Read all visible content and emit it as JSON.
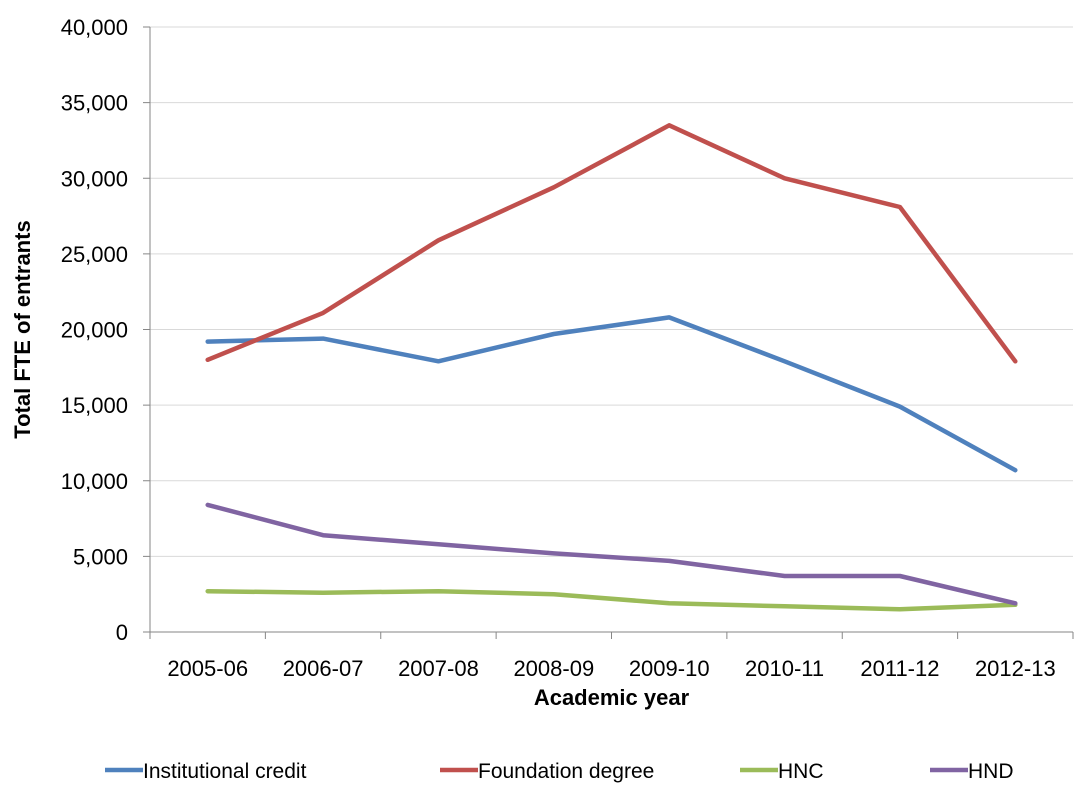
{
  "chart_data": {
    "type": "line",
    "title": "",
    "xlabel": "Academic year",
    "ylabel": "Total FTE of entrants",
    "categories": [
      "2005-06",
      "2006-07",
      "2007-08",
      "2008-09",
      "2009-10",
      "2010-11",
      "2011-12",
      "2012-13"
    ],
    "ylim": [
      0,
      40000
    ],
    "yticks": [
      0,
      5000,
      10000,
      15000,
      20000,
      25000,
      30000,
      35000,
      40000
    ],
    "ytick_labels": [
      "0",
      "5,000",
      "10,000",
      "15,000",
      "20,000",
      "25,000",
      "30,000",
      "35,000",
      "40,000"
    ],
    "grid": "horizontal",
    "legend_position": "bottom",
    "series": [
      {
        "name": "Institutional credit",
        "color": "#4f81bd",
        "values": [
          19200,
          19400,
          17900,
          19700,
          20800,
          17900,
          14900,
          10700
        ]
      },
      {
        "name": "Foundation degree",
        "color": "#c0504d",
        "values": [
          18000,
          21100,
          25900,
          29400,
          33500,
          30000,
          28100,
          17900
        ]
      },
      {
        "name": "HNC",
        "color": "#9bbb59",
        "values": [
          2700,
          2600,
          2700,
          2500,
          1900,
          1700,
          1500,
          1800
        ]
      },
      {
        "name": "HND",
        "color": "#8064a2",
        "values": [
          8400,
          6400,
          5800,
          5200,
          4700,
          3700,
          3700,
          1900
        ]
      }
    ]
  }
}
